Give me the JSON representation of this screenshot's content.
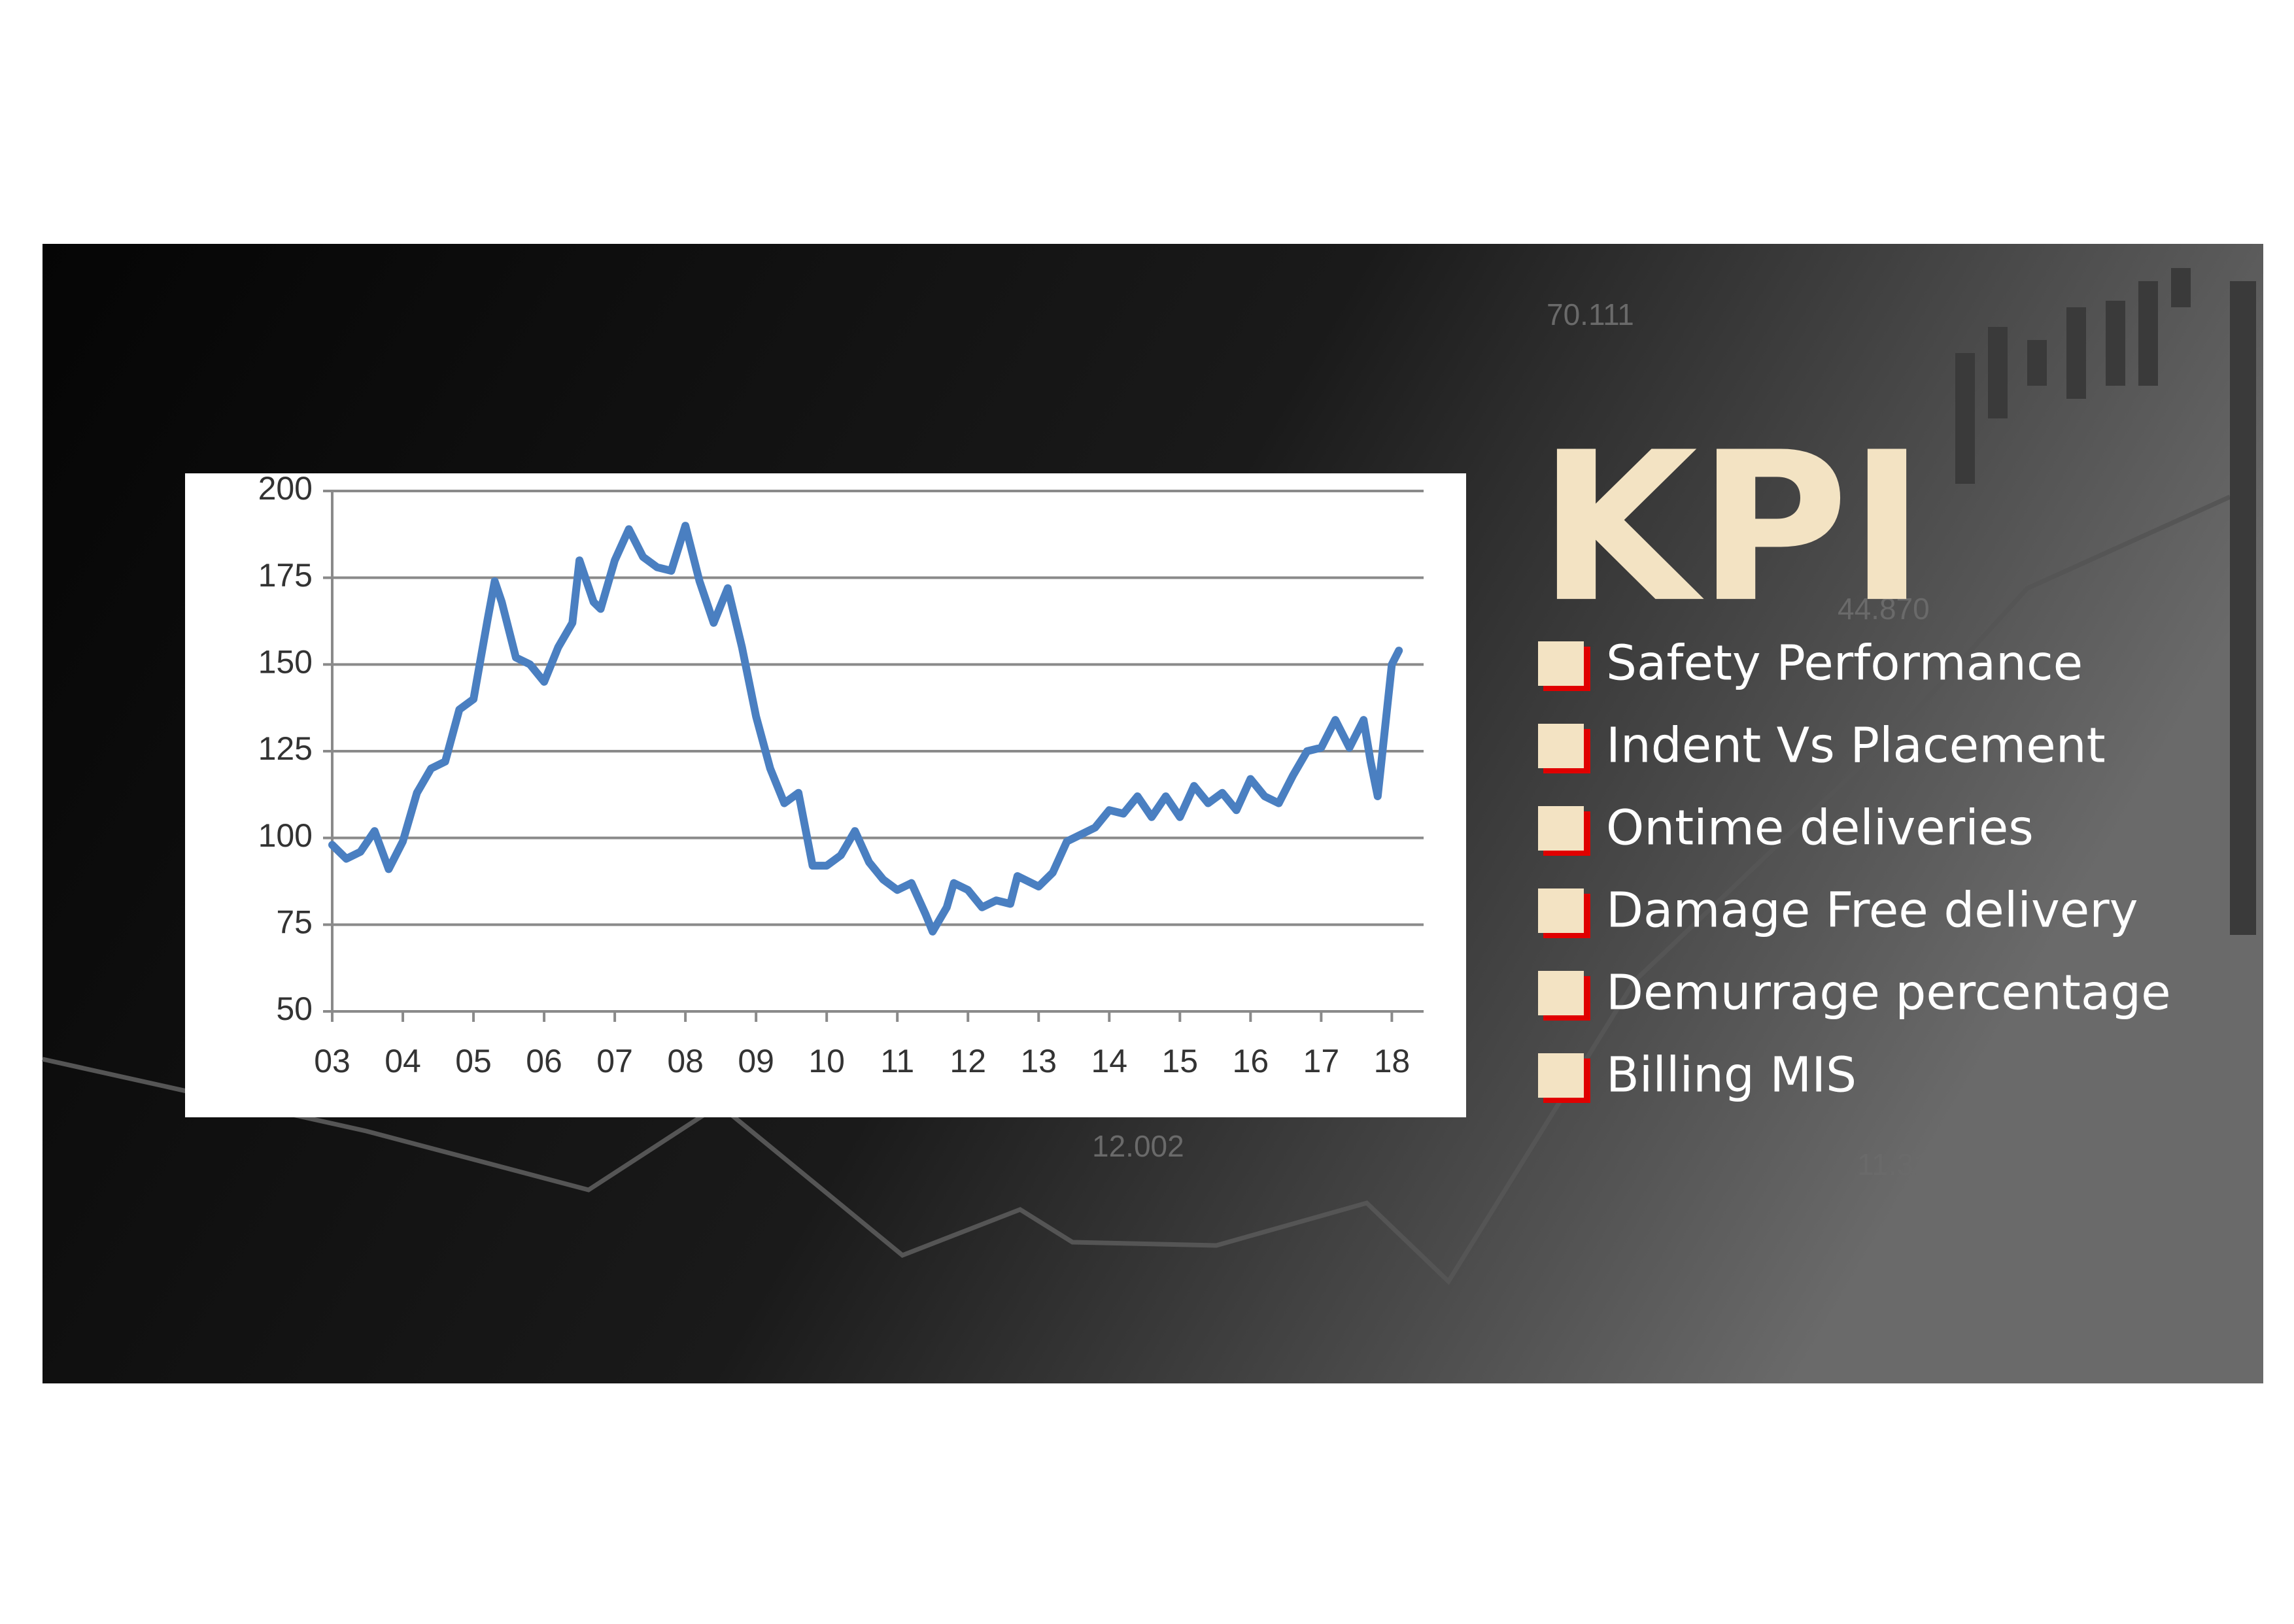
{
  "background": {
    "labels": [
      "70.111",
      "44.870",
      "12.002",
      "11.311"
    ]
  },
  "chart_data": {
    "type": "line",
    "color": "#4a7fc1",
    "grid": true,
    "x": [
      3.0,
      3.2,
      3.4,
      3.6,
      3.8,
      4.0,
      4.2,
      4.4,
      4.6,
      4.8,
      5.0,
      5.2,
      5.3,
      5.4,
      5.6,
      5.8,
      6.0,
      6.2,
      6.4,
      6.5,
      6.7,
      6.8,
      7.0,
      7.2,
      7.4,
      7.6,
      7.8,
      8.0,
      8.2,
      8.4,
      8.6,
      8.8,
      9.0,
      9.2,
      9.4,
      9.6,
      9.8,
      10.0,
      10.2,
      10.4,
      10.6,
      10.8,
      11.0,
      11.2,
      11.4,
      11.5,
      11.7,
      11.8,
      12.0,
      12.2,
      12.4,
      12.6,
      12.7,
      13.0,
      13.2,
      13.4,
      13.6,
      13.8,
      14.0,
      14.2,
      14.4,
      14.6,
      14.8,
      15.0,
      15.2,
      15.4,
      15.6,
      15.8,
      16.0,
      16.2,
      16.4,
      16.6,
      16.8,
      17.0,
      17.2,
      17.4,
      17.6,
      17.7,
      17.8,
      18.0,
      18.1
    ],
    "values": [
      98,
      94,
      96,
      102,
      91,
      99,
      113,
      120,
      122,
      137,
      140,
      163,
      174,
      168,
      152,
      150,
      145,
      155,
      162,
      180,
      168,
      166,
      180,
      189,
      181,
      178,
      177,
      190,
      174,
      162,
      172,
      155,
      135,
      120,
      110,
      113,
      92,
      92,
      95,
      102,
      93,
      88,
      85,
      87,
      78,
      73,
      80,
      87,
      85,
      80,
      82,
      81,
      89,
      86,
      90,
      99,
      101,
      103,
      108,
      107,
      112,
      106,
      112,
      106,
      115,
      110,
      113,
      108,
      117,
      112,
      110,
      118,
      125,
      126,
      134,
      126,
      134,
      122,
      112,
      150,
      154
    ],
    "xlim": [
      3,
      18.45
    ],
    "ylim": [
      50,
      200
    ],
    "xticks": [
      {
        "value": 3,
        "label": "03"
      },
      {
        "value": 4,
        "label": "04"
      },
      {
        "value": 5,
        "label": "05"
      },
      {
        "value": 6,
        "label": "06"
      },
      {
        "value": 7,
        "label": "07"
      },
      {
        "value": 8,
        "label": "08"
      },
      {
        "value": 9,
        "label": "09"
      },
      10,
      11,
      12,
      13,
      14,
      15,
      16,
      17,
      18
    ],
    "yticks": [
      50,
      75,
      100,
      125,
      150,
      175,
      200
    ]
  },
  "kpi": {
    "title": "KPI",
    "items": [
      "Safety Performance",
      "Indent Vs Placement",
      "Ontime deliveries",
      "Damage Free delivery",
      "Demurrage percentage",
      "Billing MIS"
    ]
  }
}
